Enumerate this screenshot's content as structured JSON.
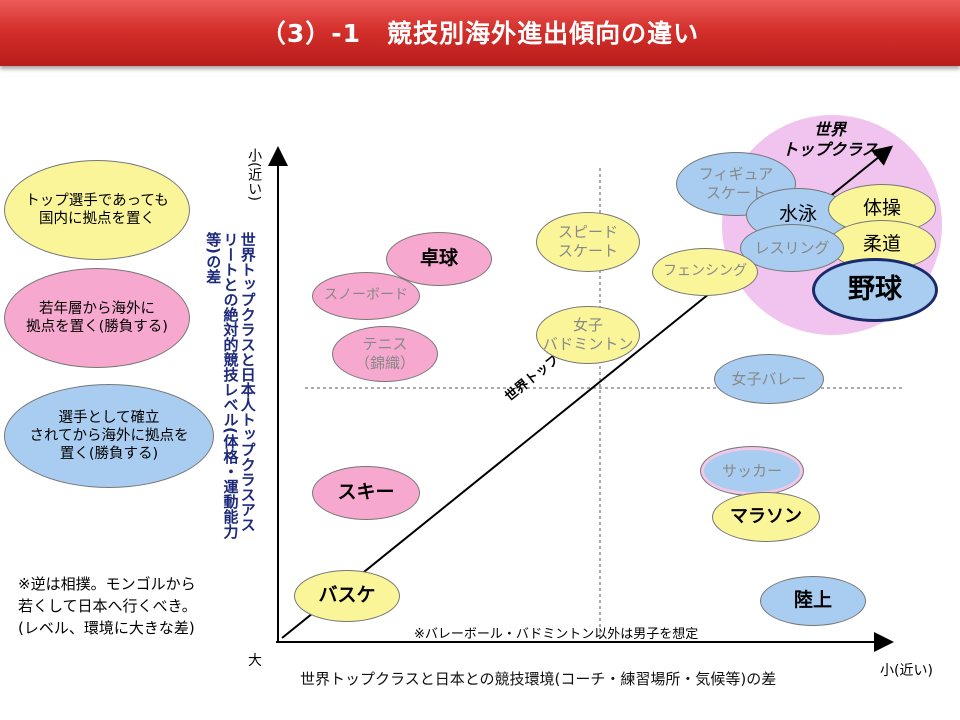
{
  "title": "（3）-1　競技別海外進出傾向の違い",
  "legend": [
    {
      "id": "legend-yellow",
      "color": "#fbf59a",
      "text": "トップ選手であっても\n国内に拠点を置く"
    },
    {
      "id": "legend-pink",
      "color": "#f7a8cf",
      "text": "若年層から海外に\n拠点を置く(勝負する)"
    },
    {
      "id": "legend-blue",
      "color": "#a9cdf0",
      "text": "選手として確立\nされてから海外に拠点を\n置く(勝負する)"
    }
  ],
  "y_axis": {
    "top_label": "小(近い)",
    "title": "世界トップクラスと日本人トップクラスアスリートとの絶対的競技レベル(体格・運動能力等)の差"
  },
  "x_axis": {
    "origin_label": "大",
    "end_label": "小(近い)",
    "title": "世界トップクラスと日本との競技環境(コーチ・練習場所・気候等)の差"
  },
  "diagonal_label": "世界トップとの差",
  "world_top_label": "世界\nトップクラス",
  "footnote_sumo": "※逆は相撲。モンゴルから\n若くして日本へ行くべき。\n(レベル、環境に大きな差)",
  "footnote_note": "※バレーボール・バドミントン以外は男子を想定",
  "sports": [
    {
      "id": "figure-skating",
      "label": "フィギュア\nスケート",
      "color": "blue"
    },
    {
      "id": "swimming",
      "label": "水泳",
      "color": "blue"
    },
    {
      "id": "gymnastics",
      "label": "体操",
      "color": "yellow"
    },
    {
      "id": "judo",
      "label": "柔道",
      "color": "yellow"
    },
    {
      "id": "wrestling",
      "label": "レスリング",
      "color": "blue"
    },
    {
      "id": "baseball",
      "label": "野球",
      "color": "blue"
    },
    {
      "id": "fencing",
      "label": "フェンシング",
      "color": "yellow"
    },
    {
      "id": "speed-skating",
      "label": "スピード\nスケート",
      "color": "yellow"
    },
    {
      "id": "table-tennis",
      "label": "卓球",
      "color": "pink"
    },
    {
      "id": "snowboard",
      "label": "スノーボード",
      "color": "pink"
    },
    {
      "id": "tennis",
      "label": "テニス\n（錦織）",
      "color": "pink"
    },
    {
      "id": "womens-badminton",
      "label": "女子\nバドミントン",
      "color": "yellow"
    },
    {
      "id": "womens-volleyball",
      "label": "女子バレー",
      "color": "blue"
    },
    {
      "id": "soccer",
      "label": "サッカー",
      "color": "blue"
    },
    {
      "id": "marathon",
      "label": "マラソン",
      "color": "yellow"
    },
    {
      "id": "ski",
      "label": "スキー",
      "color": "pink"
    },
    {
      "id": "basketball",
      "label": "バスケ",
      "color": "yellow"
    },
    {
      "id": "athletics",
      "label": "陸上",
      "color": "blue"
    }
  ]
}
